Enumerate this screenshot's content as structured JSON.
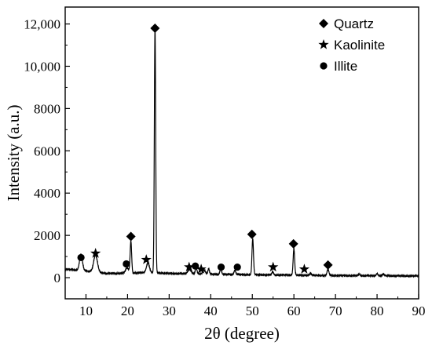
{
  "chart_data": {
    "type": "line",
    "xlabel": "2θ (degree)",
    "ylabel": "Intensity (a.u.)",
    "xlim": [
      5,
      90
    ],
    "ylim": [
      -1000,
      12800
    ],
    "x_ticks": [
      10,
      20,
      30,
      40,
      50,
      60,
      70,
      80,
      90
    ],
    "x_tick_labels": [
      "10",
      "20",
      "30",
      "40",
      "50",
      "60",
      "70",
      "80",
      "90"
    ],
    "y_ticks": [
      0,
      2000,
      4000,
      6000,
      8000,
      10000,
      12000
    ],
    "y_tick_labels": [
      "0",
      "2000",
      "4000",
      "6000",
      "8000",
      "10,000",
      "12,000"
    ],
    "grid": false,
    "legend_position": "top-right",
    "legend": [
      {
        "label": "Quartz",
        "marker": "diamond"
      },
      {
        "label": "Kaolinite",
        "marker": "star"
      },
      {
        "label": "Illite",
        "marker": "circle"
      }
    ],
    "series": [
      {
        "color": "#000000",
        "baseline": [
          [
            5,
            400
          ],
          [
            10,
            320
          ],
          [
            15,
            200
          ],
          [
            20,
            210
          ],
          [
            25,
            250
          ],
          [
            30,
            200
          ],
          [
            40,
            160
          ],
          [
            50,
            140
          ],
          [
            60,
            120
          ],
          [
            70,
            100
          ],
          [
            80,
            90
          ],
          [
            90,
            80
          ]
        ],
        "peaks": [
          {
            "x": 8.8,
            "height": 750,
            "width": 0.35
          },
          {
            "x": 12.3,
            "height": 800,
            "width": 0.45
          },
          {
            "x": 19.9,
            "height": 250,
            "width": 0.4
          },
          {
            "x": 20.8,
            "height": 1500,
            "width": 0.18
          },
          {
            "x": 24.9,
            "height": 450,
            "width": 0.35
          },
          {
            "x": 26.6,
            "height": 11600,
            "width": 0.16
          },
          {
            "x": 34.9,
            "height": 200,
            "width": 0.4
          },
          {
            "x": 36.5,
            "height": 300,
            "width": 0.2
          },
          {
            "x": 38.4,
            "height": 200,
            "width": 0.3
          },
          {
            "x": 39.5,
            "height": 250,
            "width": 0.2
          },
          {
            "x": 42.4,
            "height": 250,
            "width": 0.2
          },
          {
            "x": 45.8,
            "height": 200,
            "width": 0.2
          },
          {
            "x": 50.1,
            "height": 1700,
            "width": 0.18
          },
          {
            "x": 54.9,
            "height": 150,
            "width": 0.2
          },
          {
            "x": 60.0,
            "height": 1250,
            "width": 0.18
          },
          {
            "x": 64.0,
            "height": 100,
            "width": 0.2
          },
          {
            "x": 68.2,
            "height": 300,
            "width": 0.22
          },
          {
            "x": 75.7,
            "height": 80,
            "width": 0.2
          },
          {
            "x": 80.0,
            "height": 100,
            "width": 0.2
          },
          {
            "x": 81.5,
            "height": 80,
            "width": 0.2
          }
        ]
      }
    ],
    "markers": [
      {
        "type": "diamond",
        "x": 20.8,
        "y": 1950
      },
      {
        "type": "diamond",
        "x": 26.6,
        "y": 11800
      },
      {
        "type": "diamond",
        "x": 49.9,
        "y": 2050
      },
      {
        "type": "diamond",
        "x": 59.9,
        "y": 1600
      },
      {
        "type": "diamond",
        "x": 68.2,
        "y": 600
      },
      {
        "type": "star",
        "x": 12.3,
        "y": 1150
      },
      {
        "type": "star",
        "x": 24.5,
        "y": 850
      },
      {
        "type": "star",
        "x": 34.8,
        "y": 500
      },
      {
        "type": "star",
        "x": 37.7,
        "y": 400
      },
      {
        "type": "star",
        "x": 55.0,
        "y": 500
      },
      {
        "type": "star",
        "x": 62.5,
        "y": 400
      },
      {
        "type": "circle",
        "x": 8.8,
        "y": 950
      },
      {
        "type": "circle",
        "x": 19.7,
        "y": 650
      },
      {
        "type": "circle",
        "x": 36.3,
        "y": 550
      },
      {
        "type": "circle",
        "x": 42.5,
        "y": 500
      },
      {
        "type": "circle",
        "x": 46.4,
        "y": 500
      }
    ]
  }
}
